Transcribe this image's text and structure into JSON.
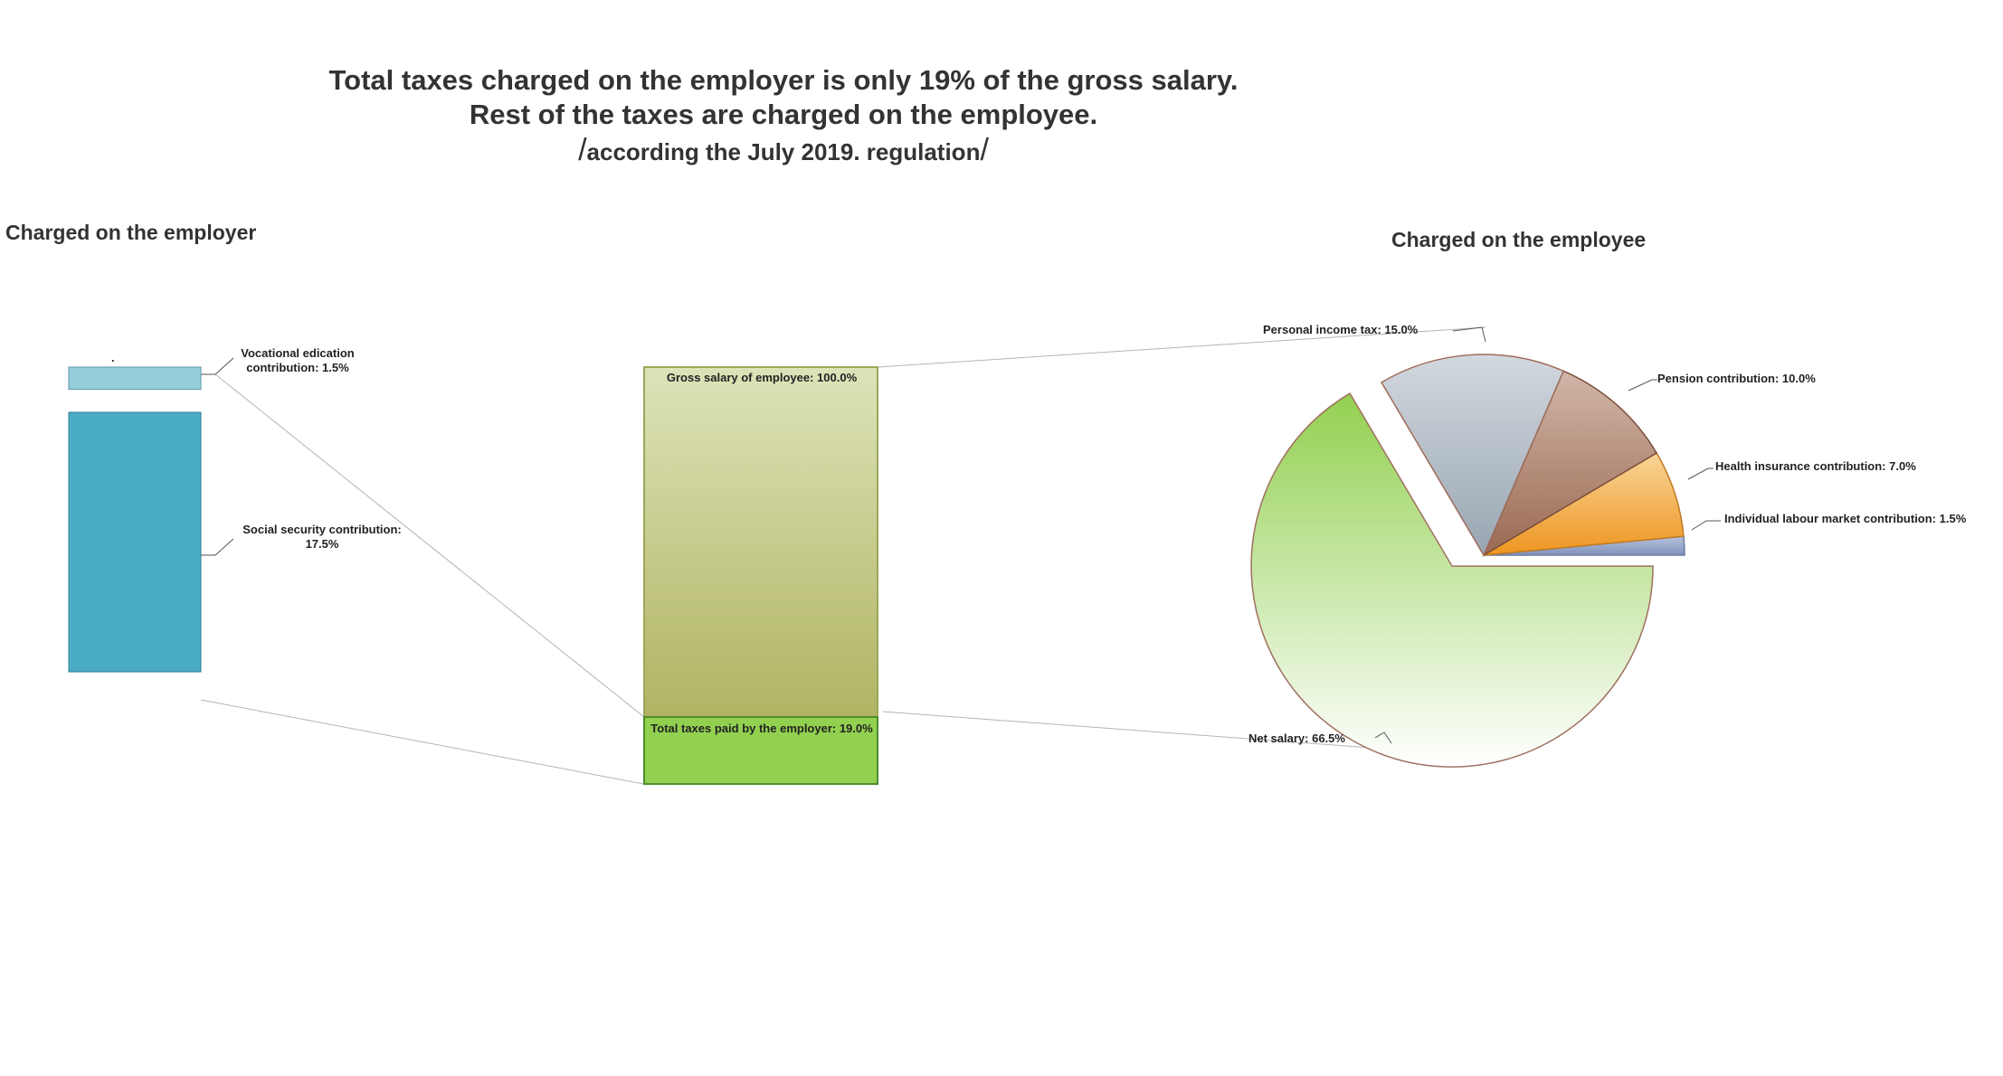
{
  "title": {
    "line1": "Total taxes charged on the employer is only 19% of the gross salary.",
    "line2": "Rest of the taxes are charged on the employee.",
    "line3": "according the July 2019. regulation",
    "slash": "/"
  },
  "colors": {
    "vocational": "#96CDDB",
    "social": "#4BACC6",
    "gross_top": "#DDE3B9",
    "gross_bottom": "#B0B462",
    "employer_total": "#92D050",
    "income_tax": "#AEB8C4",
    "pension": "#A87A64",
    "health": "#F0A030",
    "labour": "#8DA0C8",
    "net_top": "#92D050",
    "net_bottom": "#FFFFFF",
    "connector": "#B4B4B4"
  },
  "chart_data": [
    {
      "type": "bar",
      "subtitle": "Charged on the employer",
      "stacked": true,
      "categories": [
        "."
      ],
      "series": [
        {
          "name": "Vocational edication contribution",
          "values": [
            1.5
          ],
          "label": "Vocational edication contribution: 1.5%"
        },
        {
          "name": "Social security contribution",
          "values": [
            17.5
          ],
          "label": "Social security contribution: 17.5%"
        }
      ],
      "category_label": "."
    },
    {
      "type": "bar",
      "stacked": true,
      "series": [
        {
          "name": "Gross salary of employee",
          "values": [
            100.0
          ],
          "label": "Gross salary of employee: 100.0%"
        },
        {
          "name": "Total taxes paid by the employer",
          "values": [
            19.0
          ],
          "label": "Total taxes paid by the employer: 19.0%"
        }
      ]
    },
    {
      "type": "pie",
      "subtitle": "Charged on the employee",
      "slices": [
        {
          "name": "Individual labour market contribution",
          "value": 1.5,
          "label": "Individual labour market contribution: 1.5%"
        },
        {
          "name": "Health insurance contribution",
          "value": 7.0,
          "label": "Health insurance contribution: 7.0%"
        },
        {
          "name": "Pension contribution",
          "value": 10.0,
          "label": "Pension contribution: 10.0%"
        },
        {
          "name": "Personal income tax",
          "value": 15.0,
          "label": "Personal income tax: 15.0%"
        },
        {
          "name": "Net salary",
          "value": 66.5,
          "label": "Net salary: 66.5%"
        }
      ]
    }
  ]
}
